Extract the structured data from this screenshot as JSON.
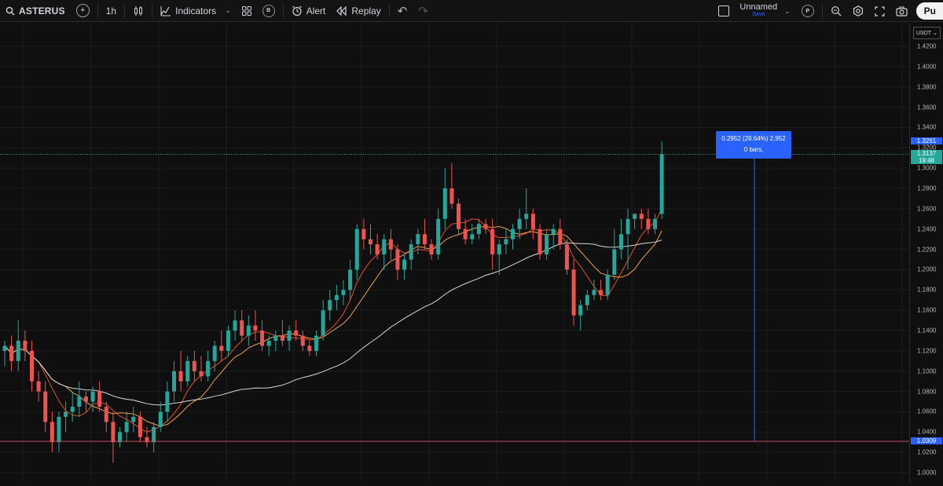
{
  "toolbar": {
    "symbol": "ASTERUS",
    "add_symbol_icon": "plus-icon",
    "interval": "1h",
    "chart_type_icon": "candles-icon",
    "indicators_label": "Indicators",
    "templates_icon": "grid-icon",
    "templates_badge": "B",
    "alert_label": "Alert",
    "replay_label": "Replay",
    "layout_name": "Unnamed",
    "save_label": "Save",
    "profile_badge": "P",
    "publish_label": "Pu"
  },
  "price_axis": {
    "currency": "USDT",
    "ticks": [
      "1.4200",
      "1.4000",
      "1.3800",
      "1.3600",
      "1.3400",
      "1.3200",
      "1.3000",
      "1.2800",
      "1.2600",
      "1.2400",
      "1.2200",
      "1.2000",
      "1.1800",
      "1.1600",
      "1.1400",
      "1.1200",
      "1.1000",
      "1.0800",
      "1.0600",
      "1.0400",
      "1.0200",
      "1.0000"
    ],
    "target_label": "1.3261",
    "last_price_label": "1.3137",
    "countdown_label": "19:48",
    "low_label": "1.0309"
  },
  "measure": {
    "line1": "0.2952 (28.64%) 2,952",
    "line2": "0 bars,"
  },
  "colors": {
    "up": "#26a69a",
    "down": "#ef5350",
    "ma_fast": "#e0512b",
    "ma_mid": "#f0a050",
    "ma_slow": "#d9d9d9",
    "accent": "#2962ff"
  },
  "chart_data": {
    "type": "candlestick",
    "ylim": [
      1.0,
      1.42
    ],
    "candles": [
      [
        1.12,
        1.13,
        1.105,
        1.125
      ],
      [
        1.125,
        1.135,
        1.1,
        1.11
      ],
      [
        1.11,
        1.15,
        1.1,
        1.13
      ],
      [
        1.13,
        1.14,
        1.11,
        1.12
      ],
      [
        1.12,
        1.13,
        1.08,
        1.09
      ],
      [
        1.09,
        1.1,
        1.07,
        1.08
      ],
      [
        1.08,
        1.09,
        1.04,
        1.05
      ],
      [
        1.05,
        1.06,
        1.02,
        1.03
      ],
      [
        1.03,
        1.06,
        1.02,
        1.055
      ],
      [
        1.055,
        1.07,
        1.04,
        1.06
      ],
      [
        1.06,
        1.08,
        1.05,
        1.065
      ],
      [
        1.065,
        1.09,
        1.055,
        1.075
      ],
      [
        1.075,
        1.08,
        1.06,
        1.07
      ],
      [
        1.07,
        1.085,
        1.06,
        1.08
      ],
      [
        1.08,
        1.09,
        1.06,
        1.065
      ],
      [
        1.065,
        1.07,
        1.04,
        1.05
      ],
      [
        1.05,
        1.06,
        1.01,
        1.03
      ],
      [
        1.03,
        1.045,
        1.025,
        1.04
      ],
      [
        1.04,
        1.06,
        1.03,
        1.05
      ],
      [
        1.05,
        1.065,
        1.04,
        1.055
      ],
      [
        1.055,
        1.06,
        1.03,
        1.035
      ],
      [
        1.035,
        1.045,
        1.025,
        1.03
      ],
      [
        1.03,
        1.05,
        1.02,
        1.045
      ],
      [
        1.045,
        1.07,
        1.04,
        1.06
      ],
      [
        1.06,
        1.09,
        1.05,
        1.08
      ],
      [
        1.08,
        1.11,
        1.07,
        1.1
      ],
      [
        1.1,
        1.12,
        1.08,
        1.09
      ],
      [
        1.09,
        1.115,
        1.085,
        1.11
      ],
      [
        1.11,
        1.12,
        1.09,
        1.1
      ],
      [
        1.1,
        1.115,
        1.09,
        1.095
      ],
      [
        1.095,
        1.12,
        1.09,
        1.11
      ],
      [
        1.11,
        1.13,
        1.1,
        1.125
      ],
      [
        1.125,
        1.14,
        1.11,
        1.12
      ],
      [
        1.12,
        1.145,
        1.115,
        1.14
      ],
      [
        1.14,
        1.16,
        1.13,
        1.15
      ],
      [
        1.15,
        1.16,
        1.13,
        1.135
      ],
      [
        1.135,
        1.155,
        1.125,
        1.145
      ],
      [
        1.145,
        1.16,
        1.13,
        1.14
      ],
      [
        1.14,
        1.15,
        1.12,
        1.125
      ],
      [
        1.125,
        1.135,
        1.115,
        1.13
      ],
      [
        1.13,
        1.14,
        1.12,
        1.135
      ],
      [
        1.135,
        1.15,
        1.125,
        1.13
      ],
      [
        1.13,
        1.145,
        1.12,
        1.14
      ],
      [
        1.14,
        1.15,
        1.13,
        1.135
      ],
      [
        1.135,
        1.14,
        1.12,
        1.125
      ],
      [
        1.125,
        1.13,
        1.115,
        1.12
      ],
      [
        1.12,
        1.14,
        1.115,
        1.135
      ],
      [
        1.135,
        1.17,
        1.13,
        1.16
      ],
      [
        1.16,
        1.18,
        1.15,
        1.17
      ],
      [
        1.17,
        1.185,
        1.16,
        1.175
      ],
      [
        1.175,
        1.19,
        1.165,
        1.18
      ],
      [
        1.18,
        1.21,
        1.17,
        1.2
      ],
      [
        1.2,
        1.245,
        1.19,
        1.24
      ],
      [
        1.24,
        1.25,
        1.22,
        1.23
      ],
      [
        1.23,
        1.245,
        1.215,
        1.225
      ],
      [
        1.225,
        1.235,
        1.21,
        1.215
      ],
      [
        1.215,
        1.235,
        1.2,
        1.23
      ],
      [
        1.23,
        1.24,
        1.21,
        1.22
      ],
      [
        1.22,
        1.225,
        1.19,
        1.2
      ],
      [
        1.2,
        1.215,
        1.19,
        1.21
      ],
      [
        1.21,
        1.23,
        1.2,
        1.225
      ],
      [
        1.225,
        1.24,
        1.215,
        1.235
      ],
      [
        1.235,
        1.25,
        1.22,
        1.225
      ],
      [
        1.225,
        1.23,
        1.21,
        1.215
      ],
      [
        1.215,
        1.26,
        1.21,
        1.25
      ],
      [
        1.25,
        1.3,
        1.24,
        1.28
      ],
      [
        1.28,
        1.305,
        1.26,
        1.265
      ],
      [
        1.265,
        1.27,
        1.235,
        1.24
      ],
      [
        1.24,
        1.25,
        1.225,
        1.23
      ],
      [
        1.23,
        1.245,
        1.225,
        1.235
      ],
      [
        1.235,
        1.25,
        1.23,
        1.245
      ],
      [
        1.245,
        1.25,
        1.235,
        1.24
      ],
      [
        1.24,
        1.25,
        1.2,
        1.215
      ],
      [
        1.215,
        1.23,
        1.195,
        1.225
      ],
      [
        1.225,
        1.24,
        1.215,
        1.23
      ],
      [
        1.23,
        1.245,
        1.22,
        1.24
      ],
      [
        1.24,
        1.26,
        1.23,
        1.25
      ],
      [
        1.25,
        1.28,
        1.24,
        1.255
      ],
      [
        1.255,
        1.26,
        1.23,
        1.24
      ],
      [
        1.24,
        1.245,
        1.21,
        1.215
      ],
      [
        1.215,
        1.24,
        1.21,
        1.235
      ],
      [
        1.235,
        1.245,
        1.22,
        1.24
      ],
      [
        1.24,
        1.25,
        1.22,
        1.225
      ],
      [
        1.225,
        1.23,
        1.195,
        1.2
      ],
      [
        1.2,
        1.21,
        1.145,
        1.155
      ],
      [
        1.155,
        1.17,
        1.14,
        1.165
      ],
      [
        1.165,
        1.18,
        1.16,
        1.175
      ],
      [
        1.175,
        1.19,
        1.17,
        1.18
      ],
      [
        1.18,
        1.19,
        1.17,
        1.175
      ],
      [
        1.175,
        1.2,
        1.17,
        1.195
      ],
      [
        1.195,
        1.24,
        1.19,
        1.22
      ],
      [
        1.22,
        1.25,
        1.21,
        1.235
      ],
      [
        1.235,
        1.26,
        1.2,
        1.25
      ],
      [
        1.25,
        1.255,
        1.24,
        1.255
      ],
      [
        1.255,
        1.26,
        1.24,
        1.25
      ],
      [
        1.25,
        1.26,
        1.235,
        1.24
      ],
      [
        1.24,
        1.255,
        1.235,
        1.25
      ],
      [
        1.255,
        1.3261,
        1.25,
        1.3137
      ]
    ]
  }
}
